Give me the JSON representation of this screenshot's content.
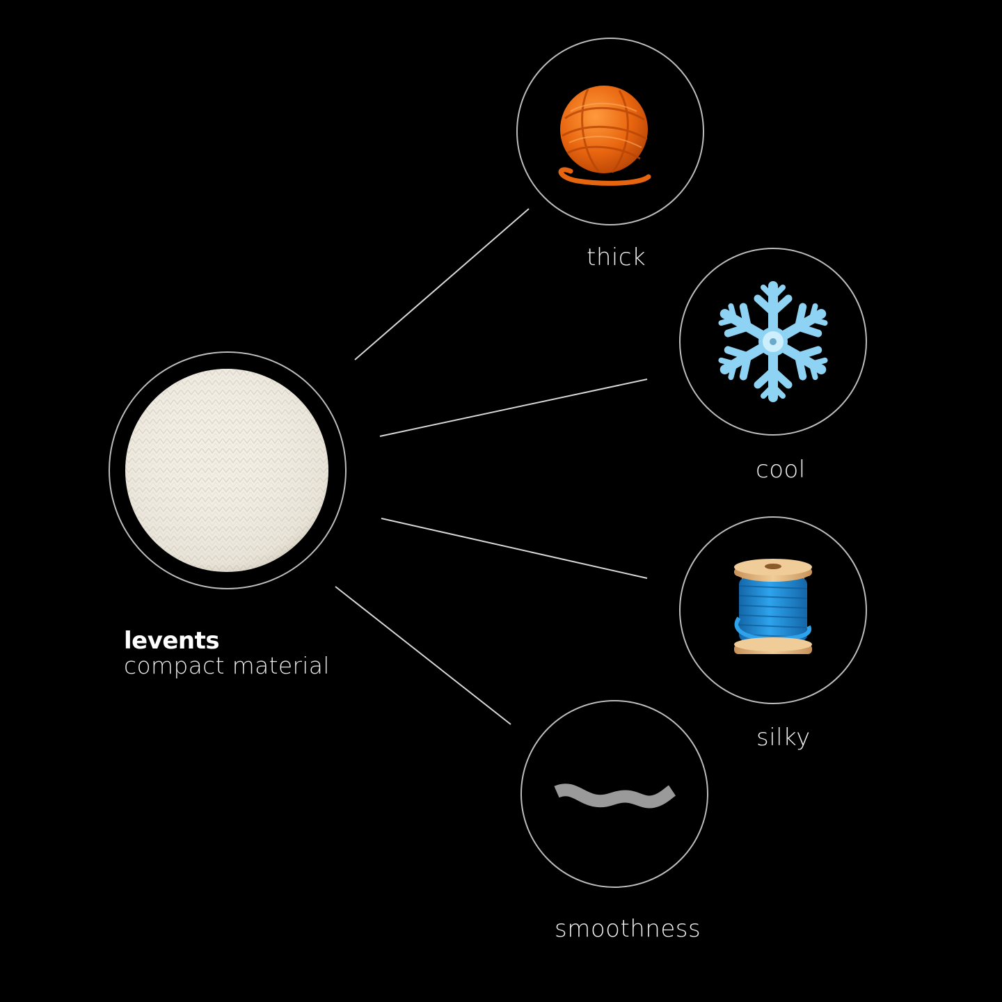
{
  "brand": {
    "name": "levents",
    "subtitle": "compact material"
  },
  "attributes": [
    {
      "label": "thick",
      "icon": "yarn-ball-icon"
    },
    {
      "label": "cool",
      "icon": "snowflake-icon"
    },
    {
      "label": "silky",
      "icon": "thread-spool-icon"
    },
    {
      "label": "smoothness",
      "icon": "wave-icon"
    }
  ],
  "colors": {
    "background": "#000000",
    "circle_stroke": "#bdbdbd",
    "fabric": "#f3efe6",
    "yarn": "#e8650f",
    "snowflake": "#8fd3f4",
    "spool_thread": "#1f8fd8",
    "spool_wood": "#e3b77e",
    "wave": "#9a9a9a"
  }
}
